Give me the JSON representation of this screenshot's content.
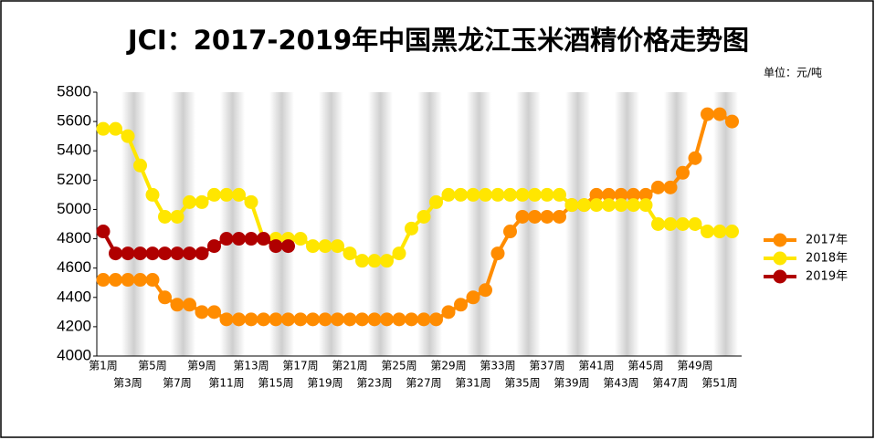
{
  "chart_data": {
    "type": "line",
    "title": "JCI：2017-2019年中国黑龙江玉米酒精价格走势图",
    "subtitle": "单位：元/吨",
    "categories": [
      "第1周",
      null,
      "第3周",
      null,
      "第5周",
      null,
      "第7周",
      null,
      "第9周",
      null,
      "第11周",
      null,
      "第13周",
      null,
      "第15周",
      null,
      "第17周",
      null,
      "第19周",
      null,
      "第21周",
      null,
      "第23周",
      null,
      "第25周",
      null,
      "第27周",
      null,
      "第29周",
      null,
      "第31周",
      null,
      "第33周",
      null,
      "第35周",
      null,
      "第37周",
      null,
      "第39周",
      null,
      "第41周",
      null,
      "第43周",
      null,
      "第45周",
      null,
      "第47周",
      null,
      "第49周",
      null,
      "第51周",
      null
    ],
    "series": [
      {
        "name": "2017年",
        "color": "#ff8c00",
        "values": [
          4520,
          4520,
          4520,
          4520,
          4520,
          4400,
          4350,
          4350,
          4300,
          4300,
          4250,
          4250,
          4250,
          4250,
          4250,
          4250,
          4250,
          4250,
          4250,
          4250,
          4250,
          4250,
          4250,
          4250,
          4250,
          4250,
          4250,
          4250,
          4300,
          4350,
          4400,
          4450,
          4700,
          4850,
          4950,
          4950,
          4950,
          4950,
          5030,
          5030,
          5100,
          5100,
          5100,
          5100,
          5100,
          5150,
          5150,
          5250,
          5350,
          5650,
          5650,
          5600
        ]
      },
      {
        "name": "2018年",
        "color": "#ffe600",
        "values": [
          5550,
          5550,
          5500,
          5300,
          5100,
          4950,
          4950,
          5050,
          5050,
          5100,
          5100,
          5100,
          5050,
          4800,
          4800,
          4800,
          4800,
          4750,
          4750,
          4750,
          4700,
          4650,
          4650,
          4650,
          4700,
          4870,
          4950,
          5050,
          5100,
          5100,
          5100,
          5100,
          5100,
          5100,
          5100,
          5100,
          5100,
          5100,
          5030,
          5030,
          5030,
          5030,
          5030,
          5030,
          5030,
          4900,
          4900,
          4900,
          4900,
          4850,
          4850,
          4850
        ]
      },
      {
        "name": "2019年",
        "color": "#b00000",
        "values": [
          4850,
          4700,
          4700,
          4700,
          4700,
          4700,
          4700,
          4700,
          4700,
          4750,
          4800,
          4800,
          4800,
          4800,
          4750,
          4750,
          null,
          null,
          null,
          null,
          null,
          null,
          null,
          null,
          null,
          null,
          null,
          null,
          null,
          null,
          null,
          null,
          null,
          null,
          null,
          null,
          null,
          null,
          null,
          null,
          null,
          null,
          null,
          null,
          null,
          null,
          null,
          null,
          null,
          null,
          null,
          null
        ]
      }
    ],
    "ylim": [
      4000,
      5800
    ],
    "yticks": [
      4000,
      4200,
      4400,
      4600,
      4800,
      5000,
      5200,
      5400,
      5600,
      5800
    ],
    "legend": "right"
  }
}
